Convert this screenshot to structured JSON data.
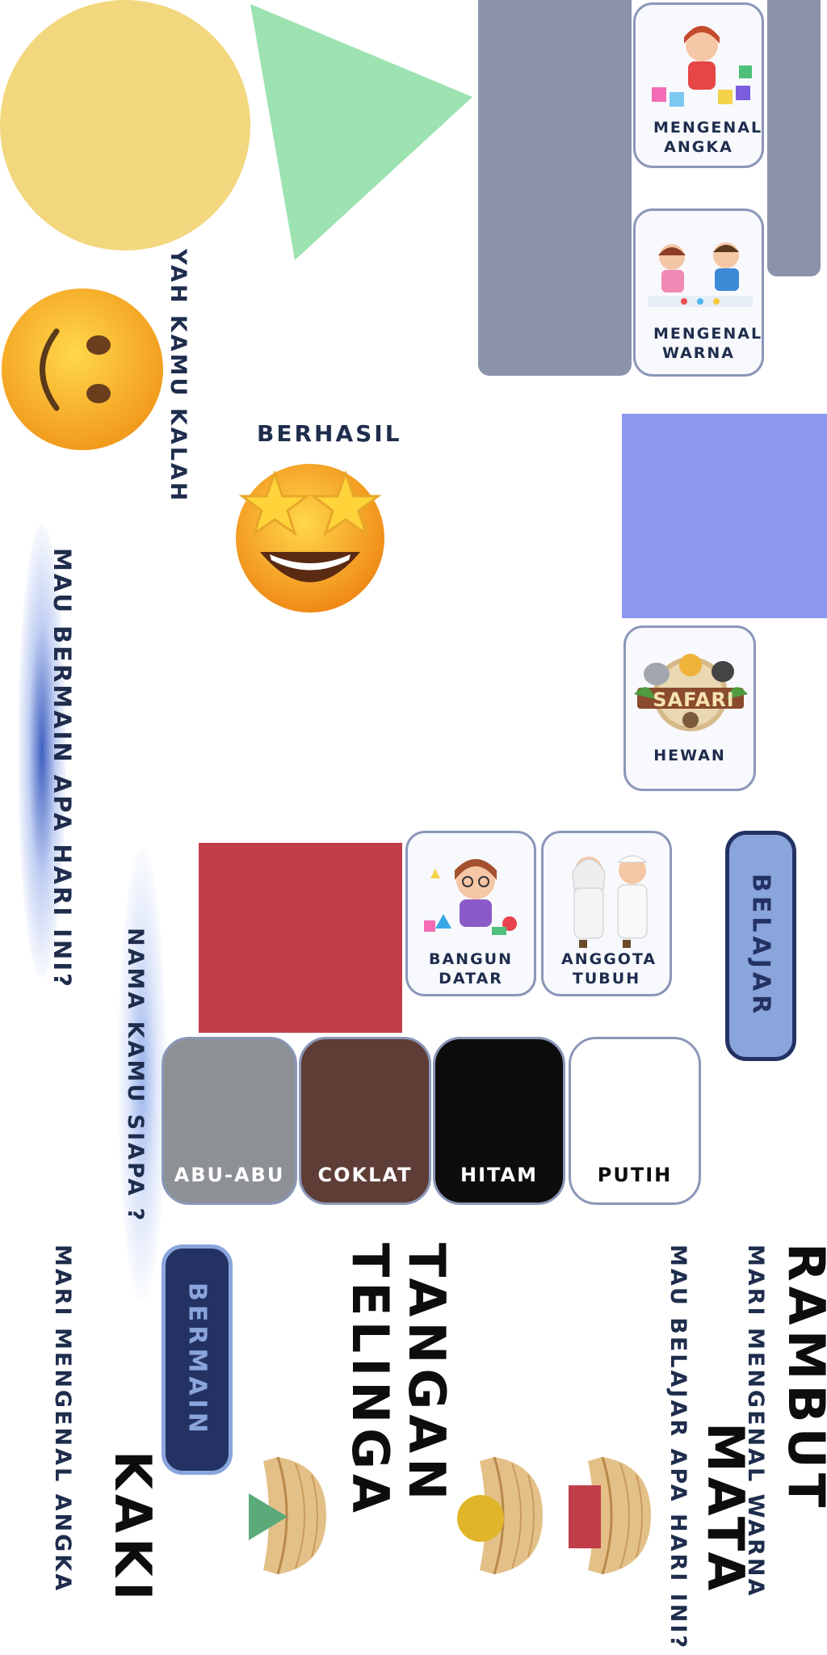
{
  "screen": {
    "yah_kamu_kalah": "YAH KAMU KALAH",
    "berhasil": "BERHASIL",
    "mau_bermain": "MAU BERMAIN APA HARI INI?",
    "nama_kamu": "NAMA KAMU SIAPA ?",
    "mari_mengenal_angka": "MARI MENGENAL ANGKA",
    "mari_mengenal_warna": "MARI MENGENAL WARNA",
    "mau_belajar": "MAU BELAJAR APA HARI INI?"
  },
  "menu": {
    "angka": "MENGENAL ANGKA",
    "warna": "MENGENAL WARNA",
    "hewan": "HEWAN",
    "hewan_logo": "SAFARI",
    "bangun_datar": "BANGUN DATAR",
    "anggota_tubuh": "ANGGOTA TUBUH"
  },
  "buttons": {
    "belajar": "BELAJAR",
    "bermain": "BERMAIN"
  },
  "colors": {
    "abu": "ABU-ABU",
    "coklat": "COKLAT",
    "hitam": "HITAM",
    "putih": "PUTIH"
  },
  "body_parts": {
    "rambut": "RAMBUT",
    "mata": "MATA",
    "tangan": "TANGAN",
    "telinga": "TELINGA",
    "kaki": "KAKI"
  },
  "palette": {
    "yellow_circle": "#f2d77e",
    "green_triangle": "#9de2b1",
    "slate": "#8a93aa",
    "periwinkle": "#8c98ee",
    "red_square": "#c13e48",
    "navy": "#233263",
    "belajar_fill": "#8aa4dc",
    "gray_swatch": "#8d9095",
    "brown_swatch": "#5e3d37",
    "black_swatch": "#0d0d0d",
    "white_swatch": "#ffffff"
  }
}
